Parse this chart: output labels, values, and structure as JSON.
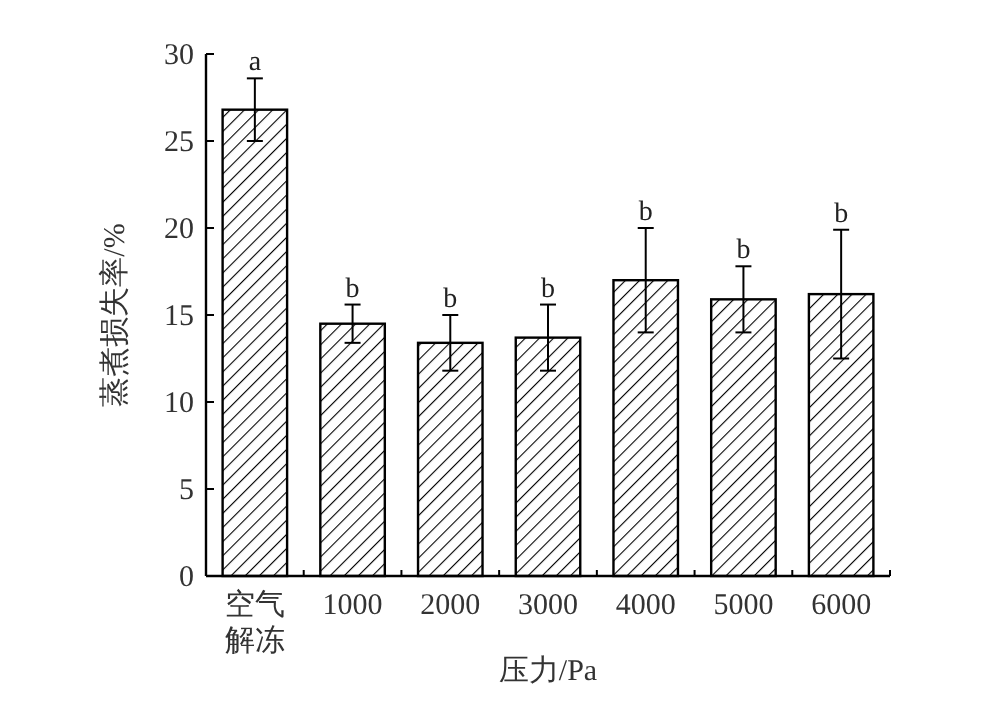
{
  "chart_data": {
    "type": "bar",
    "categories": [
      "空气解冻",
      "1000",
      "2000",
      "3000",
      "4000",
      "5000",
      "6000"
    ],
    "series": [
      {
        "color": "#ffffff",
        "values": [
          26.8,
          14.5,
          13.4,
          13.7,
          17.0,
          15.9,
          16.2
        ],
        "errors": [
          1.8,
          1.1,
          1.6,
          1.9,
          3.0,
          1.9,
          3.7
        ]
      }
    ],
    "xlabel": "压力/Pa",
    "ylabel": "蒸煮损失率/%",
    "ylim": [
      0,
      30
    ],
    "yticks": [
      0,
      5,
      10,
      15,
      20,
      25,
      30
    ],
    "grid": false,
    "annotations": [
      {
        "text": "a",
        "x": "空气解冻",
        "y": 28.6
      },
      {
        "text": "b",
        "x": "1000",
        "y": 15.6
      },
      {
        "text": "b",
        "x": "2000",
        "y": 15.0
      },
      {
        "text": "b",
        "x": "3000",
        "y": 15.6
      },
      {
        "text": "b",
        "x": "4000",
        "y": 20.0
      },
      {
        "text": "b",
        "x": "5000",
        "y": 17.8
      },
      {
        "text": "b",
        "x": "6000",
        "y": 19.9
      }
    ]
  }
}
